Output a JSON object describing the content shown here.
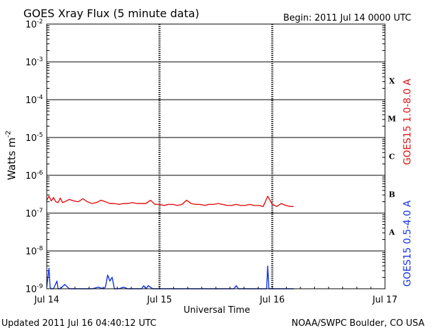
{
  "chart_data": {
    "type": "line",
    "title": "GOES Xray Flux (5 minute data)",
    "begin_label": "Begin:  2011 Jul 14 0000 UTC",
    "xlabel": "Universal Time",
    "ylabel_base": "Watts m",
    "ylabel_exp": "-2",
    "yscale": "log",
    "ylim_exp": [
      -9,
      -2
    ],
    "xlim_days": [
      0,
      3
    ],
    "grid": true,
    "x_ticks": [
      "Jul 14",
      "Jul 15",
      "Jul 16",
      "Jul 17"
    ],
    "y_tick_base": "10",
    "y_tick_exps": [
      "-9",
      "-8",
      "-7",
      "-6",
      "-5",
      "-4",
      "-3",
      "-2"
    ],
    "flare_classes": [
      "A",
      "B",
      "C",
      "M",
      "X"
    ],
    "series": [
      {
        "name": "GOES15 1.0-8.0 A",
        "color": "#e01010",
        "x_days": [
          0,
          0.02,
          0.04,
          0.06,
          0.08,
          0.1,
          0.12,
          0.14,
          0.16,
          0.2,
          0.24,
          0.28,
          0.32,
          0.36,
          0.4,
          0.44,
          0.48,
          0.52,
          0.56,
          0.6,
          0.64,
          0.68,
          0.72,
          0.76,
          0.8,
          0.84,
          0.88,
          0.92,
          0.96,
          1.0,
          1.04,
          1.08,
          1.12,
          1.16,
          1.2,
          1.24,
          1.28,
          1.32,
          1.36,
          1.4,
          1.44,
          1.48,
          1.52,
          1.56,
          1.6,
          1.64,
          1.68,
          1.72,
          1.76,
          1.8,
          1.84,
          1.88,
          1.92,
          1.96,
          2.0,
          2.04,
          2.08,
          2.12,
          2.16,
          2.19
        ],
        "values": [
          2.2e-07,
          2.8e-07,
          2.1e-07,
          2.6e-07,
          2e-07,
          1.9e-07,
          2.5e-07,
          1.9e-07,
          2e-07,
          2.3e-07,
          2.1e-07,
          2e-07,
          2.4e-07,
          2e-07,
          1.8e-07,
          1.9e-07,
          2.2e-07,
          2e-07,
          1.8e-07,
          1.8e-07,
          1.7e-07,
          1.8e-07,
          1.8e-07,
          1.9e-07,
          1.8e-07,
          1.8e-07,
          1.8e-07,
          2.2e-07,
          1.7e-07,
          1.7e-07,
          1.6e-07,
          1.7e-07,
          1.7e-07,
          1.6e-07,
          1.7e-07,
          2.2e-07,
          1.8e-07,
          1.7e-07,
          1.7e-07,
          1.6e-07,
          1.7e-07,
          1.7e-07,
          1.8e-07,
          1.7e-07,
          1.6e-07,
          1.6e-07,
          1.7e-07,
          1.6e-07,
          1.6e-07,
          1.7e-07,
          1.6e-07,
          1.6e-07,
          1.5e-07,
          2.8e-07,
          1.7e-07,
          1.5e-07,
          1.8e-07,
          1.6e-07,
          1.5e-07,
          1.5e-07
        ]
      },
      {
        "name": "GOES15 0.5-4.0 A",
        "color": "#1030e8",
        "x_days": [
          0,
          0.02,
          0.03,
          0.04,
          0.06,
          0.09,
          0.1,
          0.12,
          0.16,
          0.2,
          0.24,
          0.3,
          0.34,
          0.4,
          0.46,
          0.5,
          0.52,
          0.54,
          0.56,
          0.58,
          0.6,
          0.62,
          0.64,
          0.68,
          0.72,
          0.76,
          0.8,
          0.84,
          0.86,
          0.88,
          0.9,
          0.94,
          1.0,
          1.1,
          1.2,
          1.3,
          1.4,
          1.5,
          1.6,
          1.66,
          1.68,
          1.7,
          1.8,
          1.9,
          1.95,
          1.96,
          1.97,
          2.0,
          2.08,
          2.12,
          2.19
        ],
        "values": [
          1.1e-09,
          3.5e-09,
          1.1e-09,
          1e-09,
          1e-09,
          1.6e-09,
          1e-09,
          1e-09,
          1.3e-09,
          1e-09,
          1e-09,
          1e-09,
          1e-09,
          1e-09,
          1.1e-09,
          1e-09,
          1.1e-09,
          2.3e-09,
          1.6e-09,
          2e-09,
          1e-09,
          1e-09,
          1e-09,
          1.1e-09,
          1e-09,
          1e-09,
          1e-09,
          1e-09,
          1.2e-09,
          1e-09,
          1.2e-09,
          1e-09,
          1e-09,
          1e-09,
          1e-09,
          1e-09,
          1e-09,
          1e-09,
          1e-09,
          1e-09,
          1.2e-09,
          1e-09,
          1e-09,
          1e-09,
          1e-09,
          4e-09,
          1e-09,
          1e-09,
          1e-09,
          1e-09,
          1e-09
        ]
      }
    ]
  },
  "footer": {
    "updated": "Updated 2011 Jul 16 04:40:12 UTC",
    "credit": "NOAA/SWPC Boulder, CO USA"
  }
}
